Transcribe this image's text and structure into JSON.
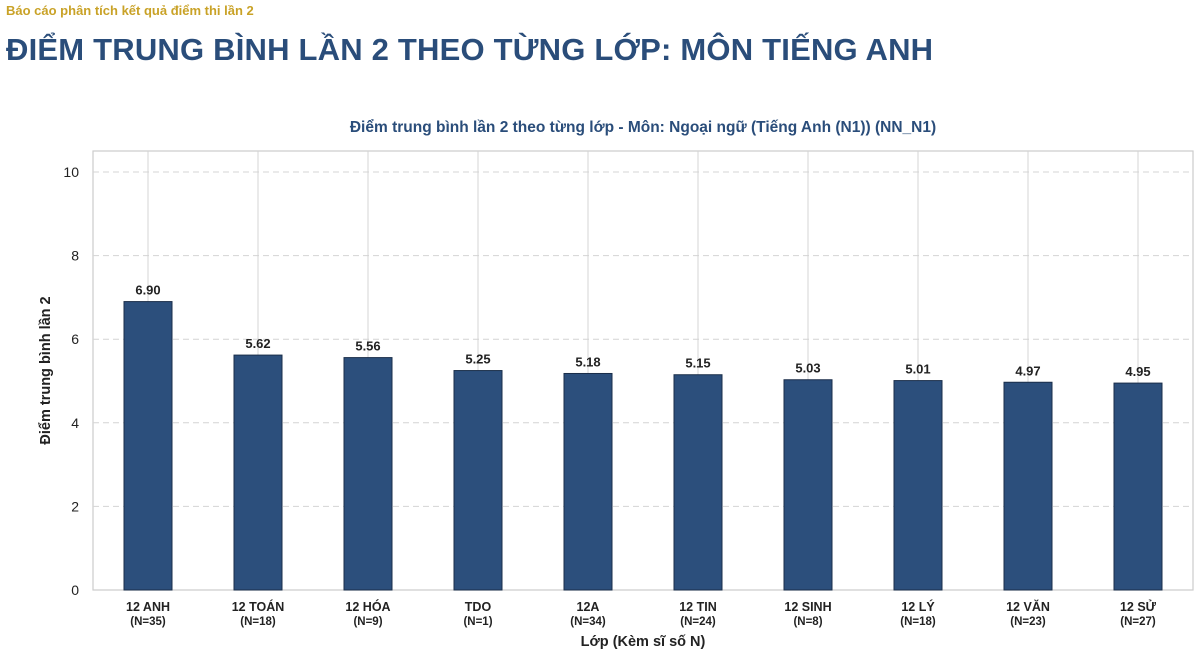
{
  "header": {
    "subtitle": "Báo cáo phân tích kết quả điểm thi lần 2",
    "title": "ĐIỂM TRUNG BÌNH LẦN 2 THEO TỪNG LỚP: MÔN TIẾNG ANH"
  },
  "chart_data": {
    "type": "bar",
    "title": "Điểm trung bình lần 2 theo từng lớp - Môn: Ngoại ngữ (Tiếng Anh (N1)) (NN_N1)",
    "xlabel": "Lớp (Kèm sĩ số N)",
    "ylabel": "Điểm trung bình lần 2",
    "ylim": [
      0,
      10
    ],
    "yticks": [
      0,
      2,
      4,
      6,
      8,
      10
    ],
    "grid": true,
    "categories": [
      "12 ANH",
      "12 TOÁN",
      "12 HÓA",
      "TDO",
      "12A",
      "12 TIN",
      "12 SINH",
      "12 LÝ",
      "12 VĂN",
      "12 SỬ"
    ],
    "counts": [
      "(N=35)",
      "(N=18)",
      "(N=9)",
      "(N=1)",
      "(N=34)",
      "(N=24)",
      "(N=8)",
      "(N=18)",
      "(N=23)",
      "(N=27)"
    ],
    "values": [
      6.9,
      5.62,
      5.56,
      5.25,
      5.18,
      5.15,
      5.03,
      5.01,
      4.97,
      4.95
    ],
    "value_labels": [
      "6.90",
      "5.62",
      "5.56",
      "5.25",
      "5.18",
      "5.15",
      "5.03",
      "5.01",
      "4.97",
      "4.95"
    ],
    "bar_color": "#2c4f7c"
  }
}
